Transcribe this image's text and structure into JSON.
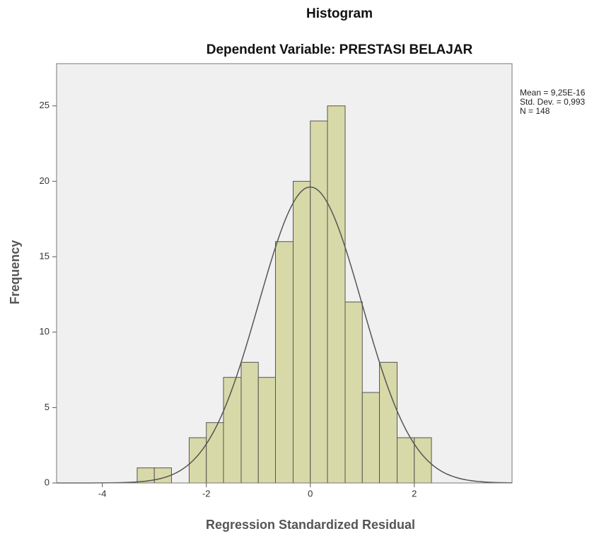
{
  "chart_data": {
    "type": "histogram",
    "title": "Histogram",
    "subtitle": "Dependent Variable: PRESTASI BELAJAR",
    "x_label": "Regression Standardized Residual",
    "y_label": "Frequency",
    "bins": [
      -3.33,
      -3.0,
      -2.67,
      -2.33,
      -2.0,
      -1.67,
      -1.33,
      -1.0,
      -0.67,
      -0.33,
      0,
      0.33,
      0.67,
      1.0,
      1.33,
      1.67,
      2.0,
      2.33
    ],
    "counts": [
      1,
      1,
      0,
      3,
      4,
      7,
      8,
      7,
      16,
      20,
      24,
      25,
      12,
      6,
      8,
      3,
      3
    ],
    "color": "#d8d9a8",
    "edge_color": "#555555",
    "curve_color": "#555555",
    "stats": [
      {
        "value": 9.25e-16,
        "label": "Mean = 9,25E-16"
      },
      {
        "value": 0.993,
        "label": "Std. Dev. = 0,993"
      },
      {
        "value": 148,
        "label": "N = 148"
      }
    ],
    "xlim": [
      -4.88,
      3.88
    ],
    "ylim": [
      0,
      27.8
    ],
    "xticks": [
      -4,
      -2,
      0,
      2
    ],
    "yticks": [
      0,
      5,
      10,
      15,
      20,
      25
    ]
  }
}
